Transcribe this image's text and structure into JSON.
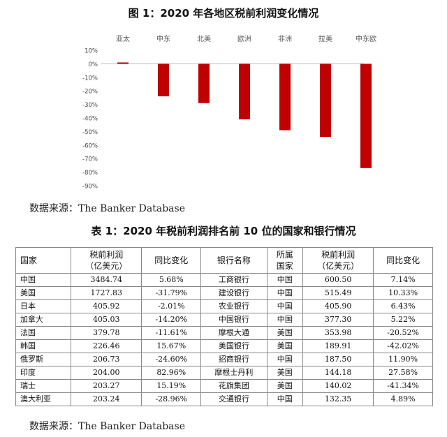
{
  "figure_title": "图 1：2020 年各地区税前利润变化情况",
  "chart_data": {
    "type": "bar",
    "categories": [
      "亚太",
      "中东",
      "北美",
      "欧洲",
      "非洲",
      "拉美",
      "中东欧"
    ],
    "values": [
      0.01,
      -0.24,
      -0.29,
      -0.41,
      -0.49,
      -0.54,
      -0.77
    ],
    "y_ticks": [
      "10%",
      "0%",
      "-10%",
      "-20%",
      "-30%",
      "-40%",
      "-50%",
      "-60%",
      "-70%",
      "-80%",
      "-90%"
    ],
    "ylim": [
      -0.9,
      0.1
    ],
    "bar_color": "#c00000",
    "category_axis_position": "top",
    "grid": false
  },
  "source_1": "数据来源：The Banker Database",
  "table_title": "表 1：2020 年税前利润排名前 10 位的国家和银行情况",
  "table": {
    "headers": {
      "country": "国家",
      "profit": "税前利润\n（亿美元）",
      "change": "同比变化",
      "bank": "银行名称",
      "bank_country": "所属\n国家",
      "bank_profit": "税前利润\n（亿美元）",
      "bank_change": "同比变化"
    },
    "rows": [
      {
        "country": "中国",
        "profit": "3484.74",
        "change": "5.68%",
        "bank": "工商银行",
        "bank_country": "中国",
        "bank_profit": "600.50",
        "bank_change": "7.14%"
      },
      {
        "country": "美国",
        "profit": "1727.83",
        "change": "-31.79%",
        "bank": "建设银行",
        "bank_country": "中国",
        "bank_profit": "515.49",
        "bank_change": "10.33%"
      },
      {
        "country": "日本",
        "profit": "405.92",
        "change": "-2.01%",
        "bank": "农业银行",
        "bank_country": "中国",
        "bank_profit": "405.90",
        "bank_change": "6.43%"
      },
      {
        "country": "加拿大",
        "profit": "405.03",
        "change": "-14.20%",
        "bank": "中国银行",
        "bank_country": "中国",
        "bank_profit": "377.30",
        "bank_change": "5.22%"
      },
      {
        "country": "法国",
        "profit": "379.78",
        "change": "-11.61%",
        "bank": "摩根大通",
        "bank_country": "美国",
        "bank_profit": "353.98",
        "bank_change": "-20.52%"
      },
      {
        "country": "韩国",
        "profit": "226.46",
        "change": "15.67%",
        "bank": "美国银行",
        "bank_country": "美国",
        "bank_profit": "189.91",
        "bank_change": "-42.02%"
      },
      {
        "country": "俄罗斯",
        "profit": "206.73",
        "change": "-24.60%",
        "bank": "招商银行",
        "bank_country": "中国",
        "bank_profit": "187.50",
        "bank_change": "11.90%"
      },
      {
        "country": "印度",
        "profit": "204.00",
        "change": "82.96%",
        "bank": "摩根士丹利",
        "bank_country": "美国",
        "bank_profit": "144.18",
        "bank_change": "27.58%"
      },
      {
        "country": "瑞士",
        "profit": "203.27",
        "change": "15.19%",
        "bank": "花旗集团",
        "bank_country": "美国",
        "bank_profit": "140.02",
        "bank_change": "-41.34%"
      },
      {
        "country": "澳大利亚",
        "profit": "203.24",
        "change": "-28.96%",
        "bank": "交通银行",
        "bank_country": "中国",
        "bank_profit": "132.35",
        "bank_change": "4.89%"
      }
    ]
  },
  "source_2": "数据来源：The Banker Database"
}
